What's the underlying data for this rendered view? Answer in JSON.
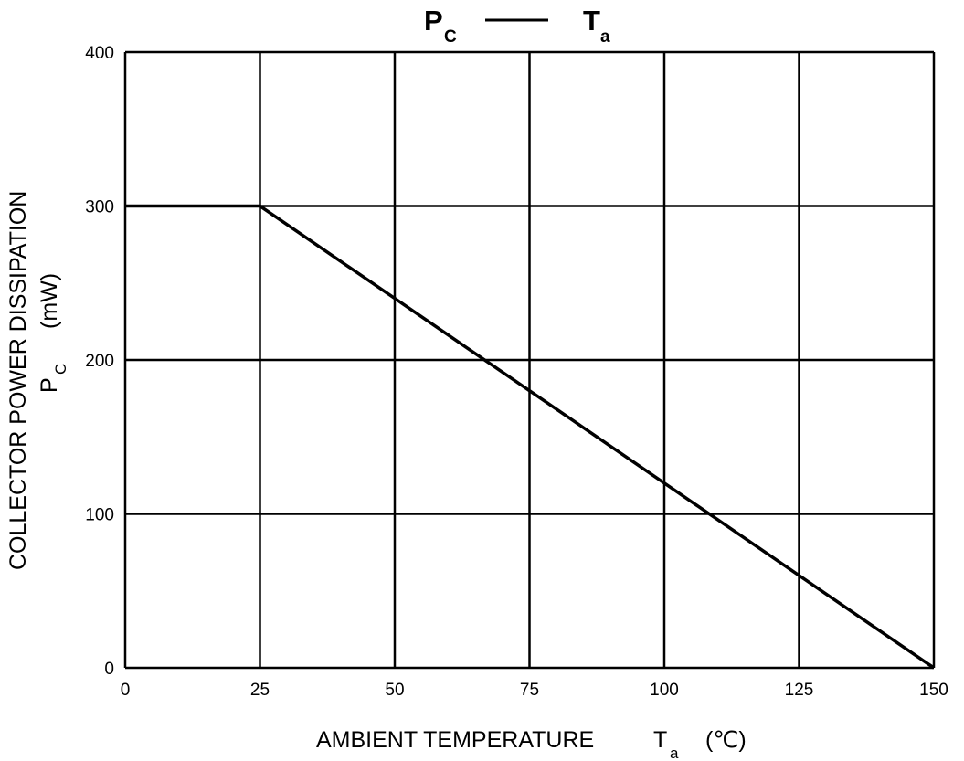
{
  "chart_data": {
    "type": "line",
    "title": {
      "left_main": "P",
      "left_sub": "C",
      "dash": "——",
      "right_main": "T",
      "right_sub": "a"
    },
    "xlabel": {
      "main": "AMBIENT TEMPERATURE",
      "symbol": "T",
      "symbol_sub": "a",
      "unit": "(℃)"
    },
    "ylabel": {
      "line1": "COLLECTOR POWER DISSIPATION",
      "symbol": "P",
      "symbol_sub": "C",
      "unit": "(mW)"
    },
    "xlim": [
      0,
      150
    ],
    "ylim": [
      0,
      400
    ],
    "x_ticks": [
      0,
      25,
      50,
      75,
      100,
      125,
      150
    ],
    "y_ticks": [
      0,
      100,
      200,
      300,
      400
    ],
    "grid": true,
    "series": [
      {
        "x": [
          0,
          25,
          150
        ],
        "y": [
          300,
          300,
          0
        ],
        "color": "#000000"
      }
    ]
  }
}
